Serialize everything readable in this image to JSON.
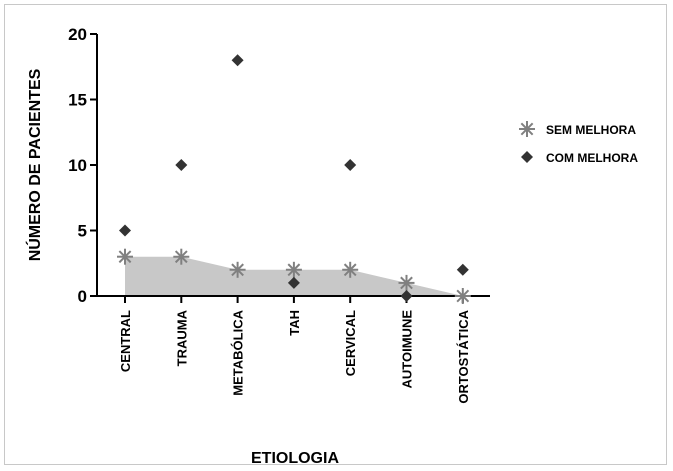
{
  "chart_data": {
    "type": "scatter",
    "title": "",
    "xlabel": "ETIOLOGIA",
    "ylabel": "NÚMERO DE PACIENTES",
    "categories": [
      "CENTRAL",
      "TRAUMA",
      "METABÓLICA",
      "TAH",
      "CERVICAL",
      "AUTOIMUNE",
      "ORTOSTÁTICA"
    ],
    "ylim": [
      0,
      20
    ],
    "yticks": [
      "0",
      "5",
      "10",
      "15",
      "20"
    ],
    "grid": false,
    "legend_position": "right",
    "series": [
      {
        "name": "SEM MELHORA",
        "marker": "asterisk",
        "color": "#808080",
        "area_fill": "#c8c8c8",
        "values": [
          3,
          3,
          2,
          2,
          2,
          1,
          0
        ]
      },
      {
        "name": "COM MELHORA",
        "marker": "diamond",
        "color": "#333333",
        "values": [
          5,
          10,
          18,
          1,
          10,
          0,
          2
        ]
      }
    ]
  }
}
